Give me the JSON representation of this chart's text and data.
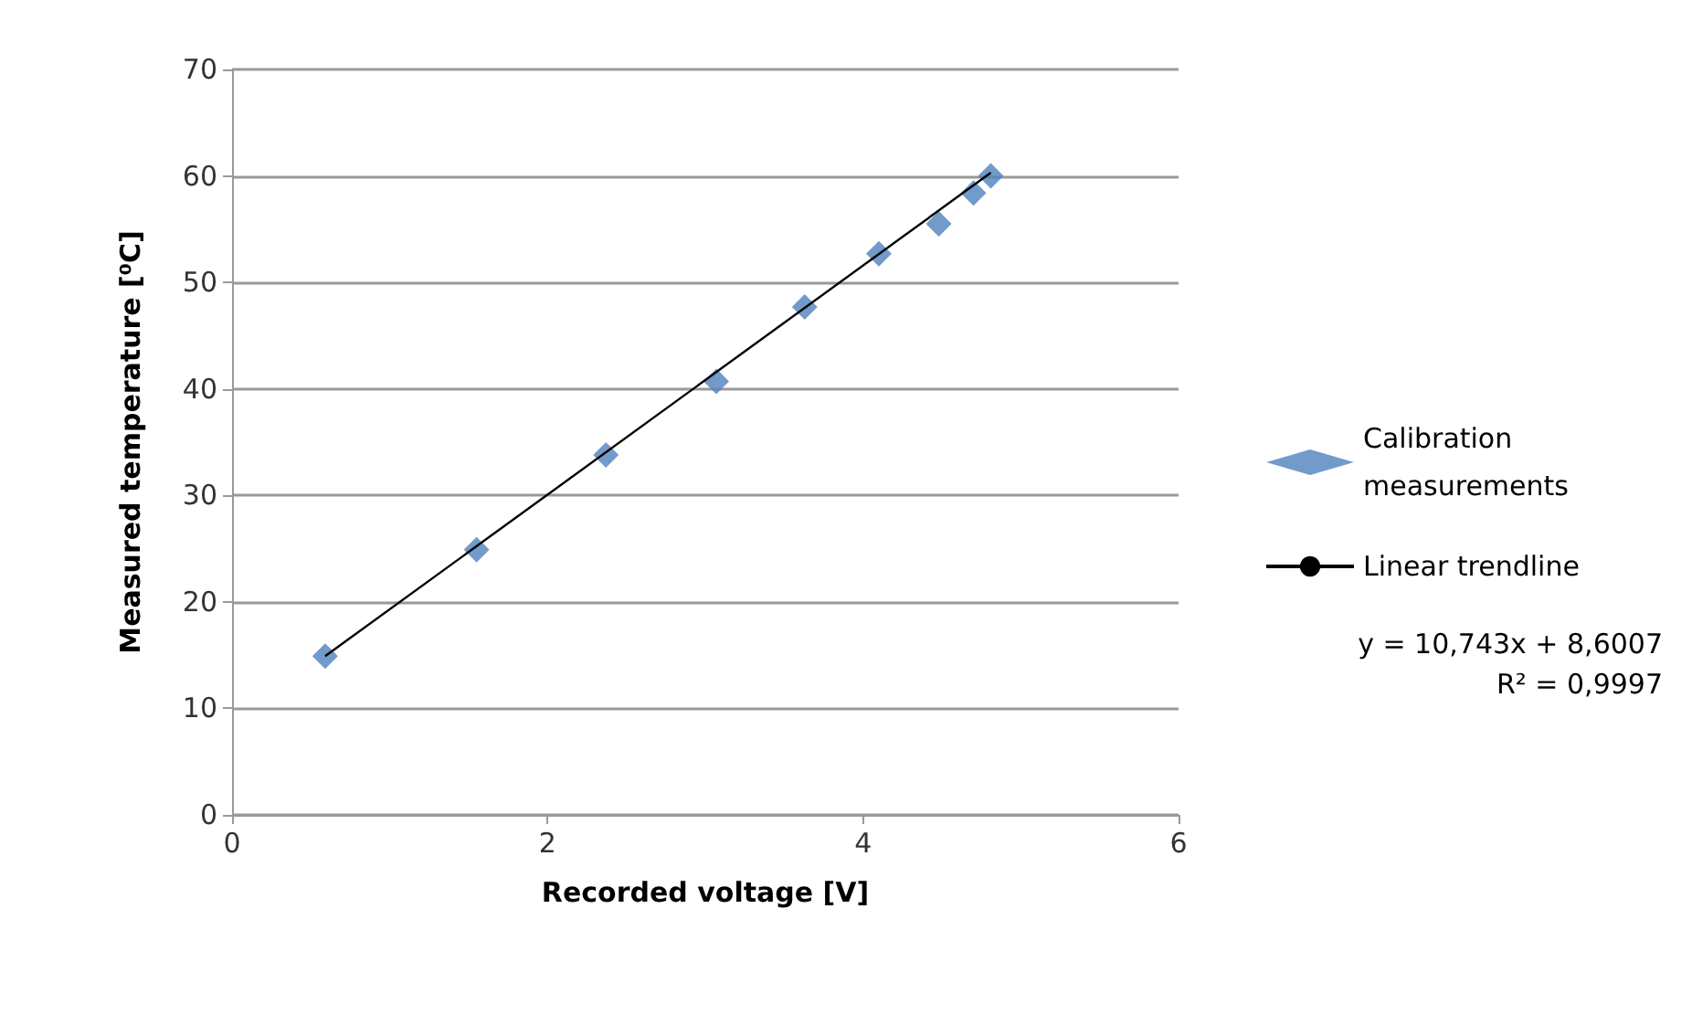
{
  "chart_data": {
    "type": "scatter",
    "xlabel": "Recorded voltage [V]",
    "ylabel": "Measured temperature [⁰C]",
    "xlim": [
      0,
      6
    ],
    "xticks": [
      0,
      2,
      4,
      6
    ],
    "ylim": [
      0,
      70
    ],
    "yticks": [
      0,
      10,
      20,
      30,
      40,
      50,
      60,
      70
    ],
    "grid": "y",
    "legend": "right",
    "marker": "diamond",
    "series": [
      {
        "name": "Calibration measurements",
        "color": "#4f81bd",
        "x": [
          0.59,
          1.55,
          2.37,
          3.07,
          3.63,
          4.1,
          4.48,
          4.7,
          4.81
        ],
        "values": [
          14.9,
          24.9,
          33.8,
          40.7,
          47.7,
          52.7,
          55.5,
          58.4,
          60.0
        ]
      },
      {
        "name": "Linear trendline",
        "type": "line",
        "color": "#000000",
        "marker": "none",
        "line_style": "solid",
        "x": [
          0.59,
          4.81
        ],
        "values": [
          14.9,
          60.3
        ]
      }
    ],
    "annotations": [
      "y = 10,743x + 8,6007",
      "R² = 0,9997"
    ]
  }
}
